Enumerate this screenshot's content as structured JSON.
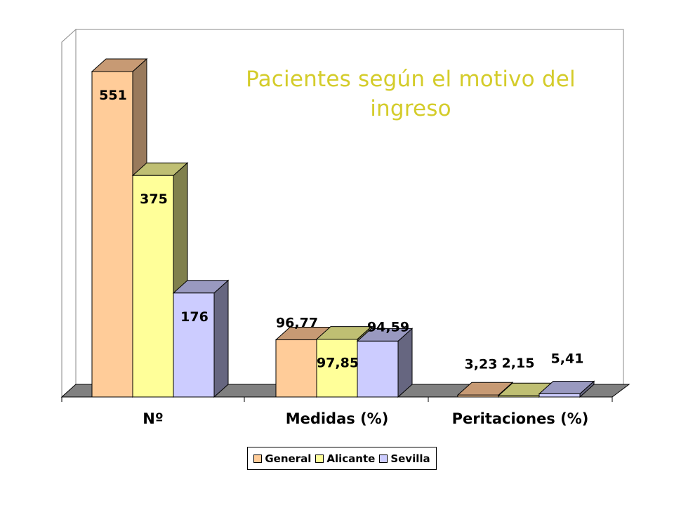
{
  "chart_data": {
    "type": "bar",
    "title": [
      "Pacientes según el motivo del",
      "ingreso"
    ],
    "categories": [
      "Nº",
      "Medidas (%)",
      "Peritaciones (%)"
    ],
    "series": [
      {
        "name": "General",
        "values": [
          551,
          96.77,
          3.23
        ],
        "labels": [
          "551",
          "96,77",
          "3,23"
        ],
        "color": "#ffcc99",
        "side_color": "#997a5c",
        "top_color": "#c79a74"
      },
      {
        "name": "Alicante",
        "values": [
          375,
          97.85,
          2.15
        ],
        "labels": [
          "375",
          "97,85",
          "2,15"
        ],
        "color": "#ffff99",
        "side_color": "#80804d",
        "top_color": "#bfbf73"
      },
      {
        "name": "Sevilla",
        "values": [
          176,
          94.59,
          5.41
        ],
        "labels": [
          "176",
          "94,59",
          "5,41"
        ],
        "color": "#ccccff",
        "side_color": "#666680",
        "top_color": "#9999c0"
      }
    ],
    "ylim": [
      0,
      600
    ],
    "grid": false,
    "legend_position": "bottom",
    "title_color": "#d4cc2a"
  }
}
